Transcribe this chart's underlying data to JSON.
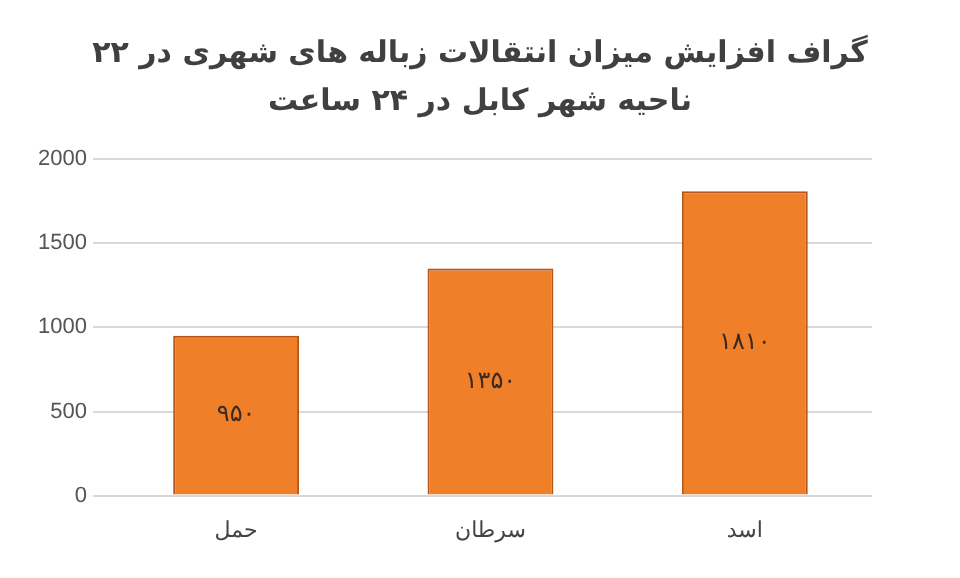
{
  "chart_data": {
    "type": "bar",
    "title": "گراف افزایش میزان انتقالات زباله های شهری در ۲۲ ناحیه شهر کابل در ۲۴ ساعت",
    "categories": [
      "حمل",
      "سرطان",
      "اسد"
    ],
    "values": [
      950,
      1350,
      1810
    ],
    "value_labels": [
      "۹۵۰",
      "۱۳۵۰",
      "۱۸۱۰"
    ],
    "color": "#f07f2a",
    "ylim": [
      0,
      2000
    ],
    "yticks": [
      0,
      500,
      1000,
      1500,
      2000
    ],
    "grid": "y",
    "legend": false
  }
}
